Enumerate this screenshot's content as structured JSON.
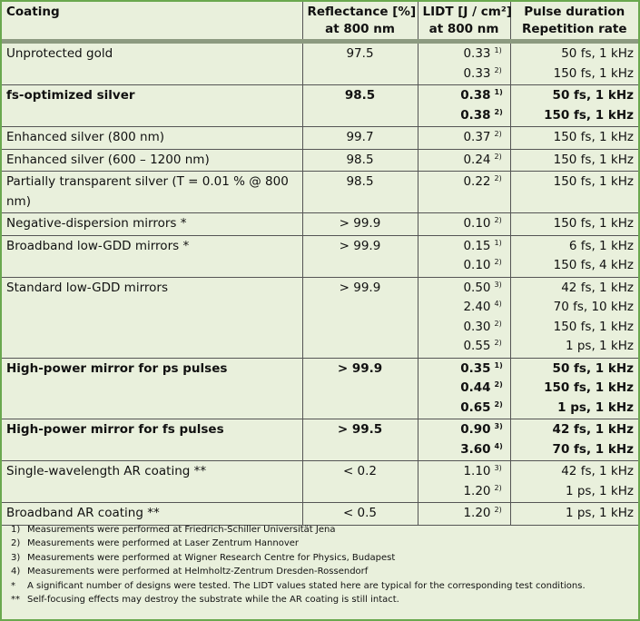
{
  "table": {
    "header": [
      [
        "Coating"
      ],
      [
        "Reflectance [%]",
        "at 800 nm"
      ],
      [
        "LIDT [J / cm²]",
        "at 800 nm"
      ],
      [
        "Pulse duration",
        "Repetition rate"
      ]
    ],
    "rows": [
      {
        "coating": "Unprotected gold",
        "reflectance": "97.5",
        "lidt": [
          {
            "value": "0.33",
            "note": "1)"
          },
          {
            "value": "0.33",
            "note": "2)"
          }
        ],
        "pulse": [
          "50 fs, 1 kHz",
          "150 fs, 1 kHz"
        ],
        "bold": false
      },
      {
        "coating": "fs-optimized silver",
        "reflectance": "98.5",
        "lidt": [
          {
            "value": "0.38",
            "note": "1)"
          },
          {
            "value": "0.38",
            "note": "2)"
          }
        ],
        "pulse": [
          "50 fs, 1 kHz",
          "150 fs, 1 kHz"
        ],
        "bold": true
      },
      {
        "coating": "Enhanced silver (800 nm)",
        "reflectance": "99.7",
        "lidt": [
          {
            "value": "0.37",
            "note": "2)"
          }
        ],
        "pulse": [
          "150 fs, 1 kHz"
        ],
        "bold": false
      },
      {
        "coating": "Enhanced silver (600 – 1200 nm)",
        "reflectance": "98.5",
        "lidt": [
          {
            "value": "0.24",
            "note": "2)"
          }
        ],
        "pulse": [
          "150 fs, 1 kHz"
        ],
        "bold": false
      },
      {
        "coating": "Partially transparent silver (T = 0.01 % @ 800  nm)",
        "reflectance": "98.5",
        "lidt": [
          {
            "value": "0.22",
            "note": "2)"
          }
        ],
        "pulse": [
          "150 fs, 1 kHz"
        ],
        "bold": false
      },
      {
        "coating": "Negative-dispersion mirrors *",
        "reflectance": "> 99.9",
        "lidt": [
          {
            "value": "0.10",
            "note": "2)"
          }
        ],
        "pulse": [
          "150 fs, 1 kHz"
        ],
        "bold": false
      },
      {
        "coating": "Broadband low-GDD mirrors *",
        "reflectance": "> 99.9",
        "lidt": [
          {
            "value": "0.15",
            "note": "1)"
          },
          {
            "value": "0.10",
            "note": "2)"
          }
        ],
        "pulse": [
          "6 fs, 1 kHz",
          "150 fs, 4 kHz"
        ],
        "bold": false
      },
      {
        "coating": "Standard low-GDD mirrors",
        "reflectance": "> 99.9",
        "lidt": [
          {
            "value": "0.50",
            "note": "3)"
          },
          {
            "value": "2.40",
            "note": "4)"
          },
          {
            "value": "0.30",
            "note": "2)"
          },
          {
            "value": "0.55",
            "note": "2)"
          }
        ],
        "pulse": [
          "42 fs, 1 kHz",
          "70 fs, 10 kHz",
          "150 fs, 1 kHz",
          "1 ps, 1 kHz"
        ],
        "bold": false
      },
      {
        "coating": "High-power mirror for ps pulses",
        "reflectance": "> 99.9",
        "lidt": [
          {
            "value": "0.35",
            "note": "1)"
          },
          {
            "value": "0.44",
            "note": "2)"
          },
          {
            "value": "0.65",
            "note": "2)"
          }
        ],
        "pulse": [
          "50 fs, 1 kHz",
          "150 fs, 1 kHz",
          "1 ps, 1 kHz"
        ],
        "bold": true
      },
      {
        "coating": "High-power mirror for fs pulses",
        "reflectance": "> 99.5",
        "lidt": [
          {
            "value": "0.90",
            "note": "3)"
          },
          {
            "value": "3.60",
            "note": "4)"
          }
        ],
        "pulse": [
          "42 fs, 1 kHz",
          "70 fs, 1 kHz"
        ],
        "bold": true
      },
      {
        "coating": "Single-wavelength AR coating **",
        "reflectance": "< 0.2",
        "lidt": [
          {
            "value": "1.10",
            "note": "3)"
          },
          {
            "value": "1.20",
            "note": "2)"
          }
        ],
        "pulse": [
          "42 fs, 1 kHz",
          "1 ps, 1 kHz"
        ],
        "bold": false
      },
      {
        "coating": "Broadband AR coating **",
        "reflectance": "< 0.5",
        "lidt": [
          {
            "value": "1.20",
            "note": "2)"
          }
        ],
        "pulse": [
          "1 ps, 1 kHz"
        ],
        "bold": false
      }
    ]
  },
  "footnotes": [
    {
      "mark": "1)",
      "text": "Measurements were performed at Friedrich-Schiller Universität Jena"
    },
    {
      "mark": "2)",
      "text": "Measurements were performed at Laser Zentrum Hannover"
    },
    {
      "mark": "3)",
      "text": "Measurements were performed at Wigner Research Centre for Physics, Budapest"
    },
    {
      "mark": "4)",
      "text": "Measurements were performed at Helmholtz-Zentrum Dresden-Rossendorf"
    },
    {
      "mark": "*",
      "text": "A significant number of designs were tested. The LIDT values stated here are typical for the corresponding test conditions."
    },
    {
      "mark": "**",
      "text": "Self-focusing effects may destroy the substrate while the AR coating is still intact."
    }
  ]
}
